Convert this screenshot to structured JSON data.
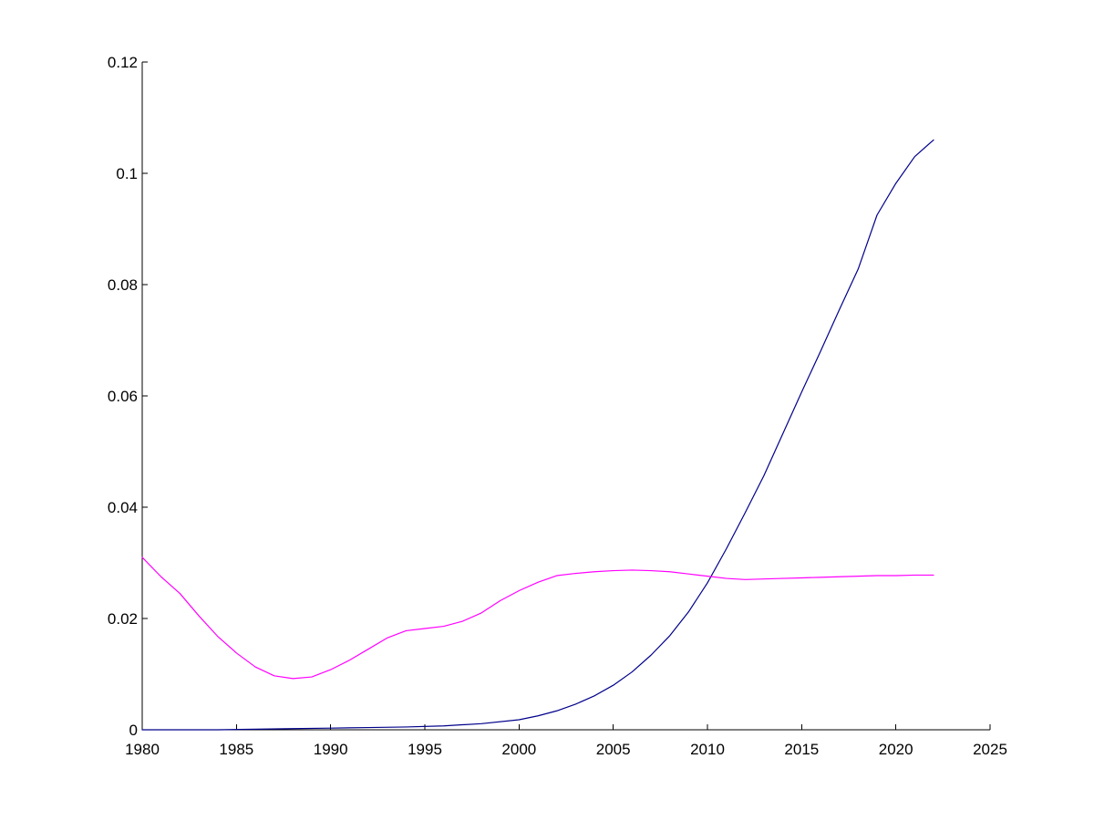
{
  "chart_data": {
    "type": "line",
    "title": "",
    "xlabel": "",
    "ylabel": "",
    "xlim": [
      1980,
      2025
    ],
    "ylim": [
      0,
      0.12
    ],
    "grid": false,
    "x_ticks": [
      1980,
      1985,
      1990,
      1995,
      2000,
      2005,
      2010,
      2015,
      2020,
      2025
    ],
    "x_tick_labels": [
      "1980",
      "1985",
      "1990",
      "1995",
      "2000",
      "2005",
      "2010",
      "2015",
      "2020",
      "2025"
    ],
    "y_ticks": [
      0,
      0.02,
      0.04,
      0.06,
      0.08,
      0.1,
      0.12
    ],
    "y_tick_labels": [
      "0",
      "0.02",
      "0.04",
      "0.06",
      "0.08",
      "0.1",
      "0.12"
    ],
    "series": [
      {
        "color": "#00008b",
        "x": [
          1980,
          1982,
          1984,
          1986,
          1988,
          1990,
          1992,
          1994,
          1996,
          1998,
          2000,
          2001,
          2002,
          2003,
          2004,
          2005,
          2006,
          2007,
          2008,
          2009,
          2010,
          2011,
          2012,
          2013,
          2014,
          2015,
          2016,
          2017,
          2018,
          2019,
          2020,
          2021,
          2022
        ],
        "values": [
          0,
          0,
          0,
          0.0001,
          0.0002,
          0.0003,
          0.0004,
          0.0005,
          0.0007,
          0.0011,
          0.0018,
          0.0025,
          0.0034,
          0.0046,
          0.0061,
          0.008,
          0.0104,
          0.0134,
          0.0169,
          0.0212,
          0.0264,
          0.0325,
          0.039,
          0.0457,
          0.0532,
          0.0607,
          0.068,
          0.0755,
          0.0828,
          0.0925,
          0.0982,
          0.103,
          0.106
        ]
      },
      {
        "color": "#ff00ff",
        "x": [
          1980,
          1981,
          1982,
          1983,
          1984,
          1985,
          1986,
          1987,
          1988,
          1989,
          1990,
          1991,
          1992,
          1993,
          1994,
          1995,
          1996,
          1997,
          1998,
          1999,
          2000,
          2001,
          2002,
          2003,
          2004,
          2005,
          2006,
          2007,
          2008,
          2009,
          2010,
          2011,
          2012,
          2013,
          2014,
          2015,
          2016,
          2017,
          2018,
          2019,
          2020,
          2021,
          2022
        ],
        "values": [
          0.031,
          0.0275,
          0.0245,
          0.0205,
          0.0168,
          0.0138,
          0.0113,
          0.0097,
          0.0092,
          0.0095,
          0.0108,
          0.0125,
          0.0145,
          0.0165,
          0.0178,
          0.0182,
          0.0186,
          0.0195,
          0.021,
          0.0232,
          0.025,
          0.0265,
          0.0277,
          0.0281,
          0.0284,
          0.0286,
          0.0287,
          0.0286,
          0.0284,
          0.028,
          0.0276,
          0.0272,
          0.027,
          0.0271,
          0.0272,
          0.0273,
          0.0274,
          0.0275,
          0.0276,
          0.0277,
          0.0277,
          0.0278,
          0.0278
        ]
      }
    ]
  }
}
